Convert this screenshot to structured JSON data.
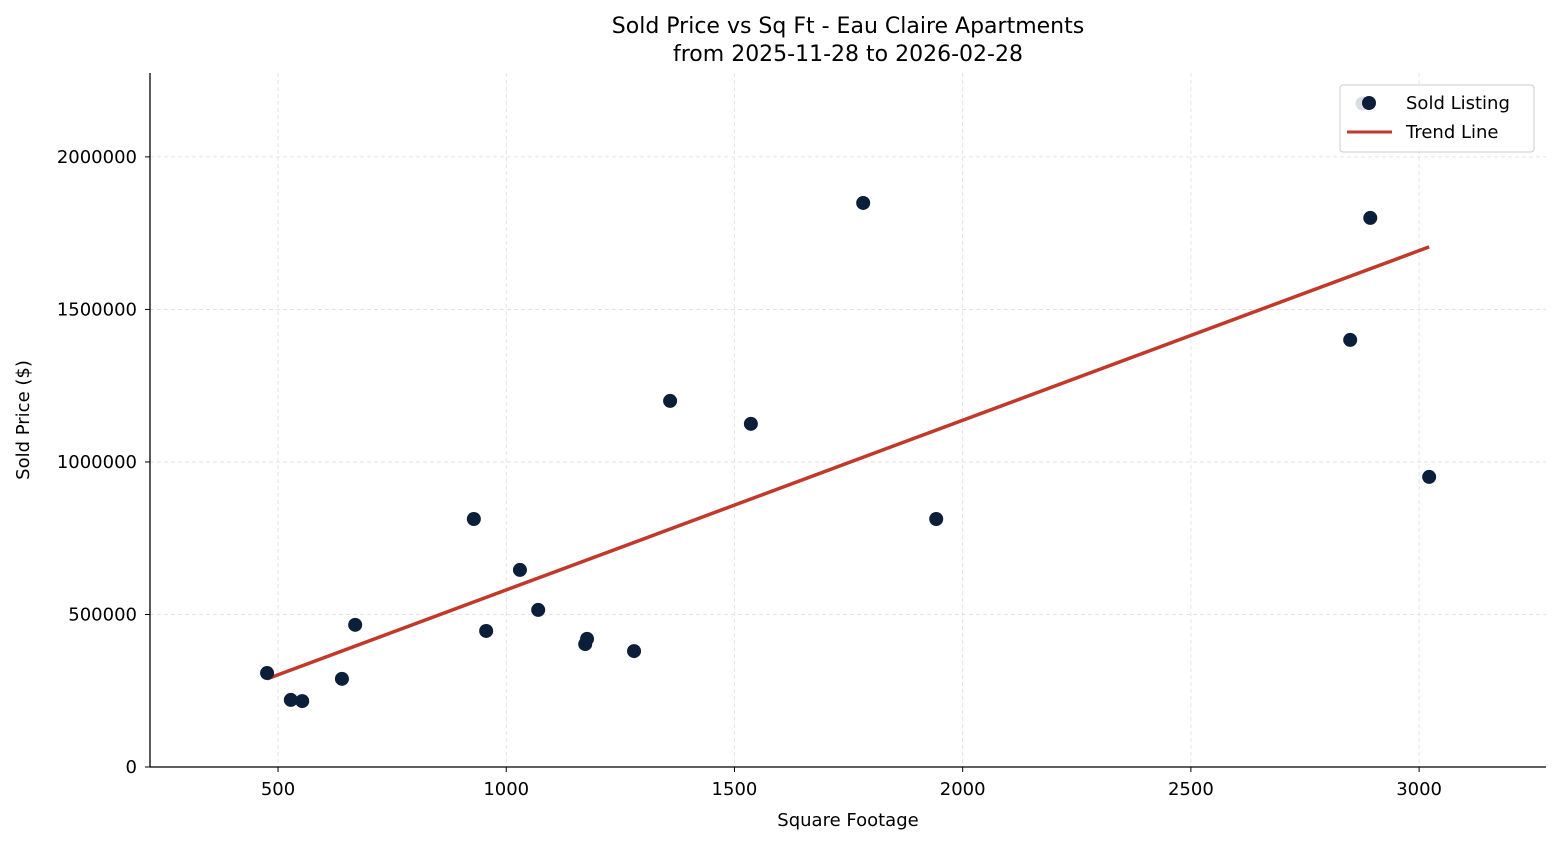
{
  "chart_data": {
    "type": "scatter",
    "title": "Sold Price vs Sq Ft - Eau Claire Apartments",
    "subtitle": "from 2025-11-28 to 2026-02-28",
    "xlabel": "Square Footage",
    "ylabel": "Sold Price ($)",
    "xlim": [
      219.5,
      3278
    ],
    "ylim": [
      0,
      2275000
    ],
    "xticks": [
      500,
      1000,
      1500,
      2000,
      2500,
      3000
    ],
    "yticks": [
      0,
      500000,
      1000000,
      1500000,
      2000000
    ],
    "xtick_labels": [
      "500",
      "1000",
      "1500",
      "2000",
      "2500",
      "3000"
    ],
    "ytick_labels": [
      "0",
      "500000",
      "1000000",
      "1500000",
      "2000000"
    ],
    "grid": true,
    "legend_position": "top-right",
    "series": [
      {
        "name": "Sold Listing",
        "type": "scatter",
        "color": "#0b1f3a",
        "x": [
          476,
          528,
          553,
          640,
          669,
          929,
          956,
          1030,
          1070,
          1173,
          1177,
          1280,
          1359,
          1536,
          1782,
          1942,
          2849,
          2876,
          2893,
          3022
        ],
        "y": [
          308000,
          220000,
          216000,
          289000,
          466000,
          813000,
          446000,
          646000,
          515000,
          403000,
          420000,
          380000,
          1200000,
          1125000,
          1849000,
          813000,
          1400000,
          2175000,
          1800000,
          951000
        ]
      },
      {
        "name": "Trend Line",
        "type": "line",
        "color": "#c0392b",
        "x": [
          476,
          3022
        ],
        "y": [
          289000,
          1705000
        ]
      }
    ]
  }
}
